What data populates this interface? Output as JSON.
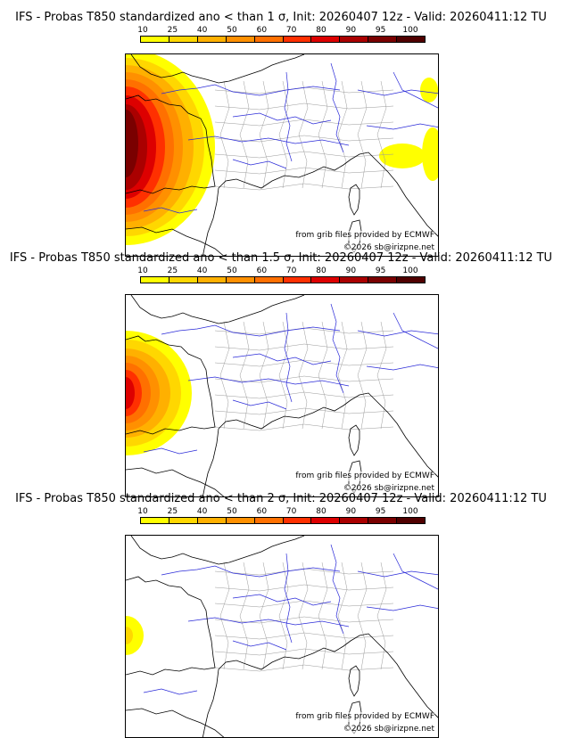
{
  "panels": [
    {
      "title": "IFS - Probas T850  standardized ano < than 1 σ, Init: 20260407 12z - Valid: 20260411:12 TU",
      "sigma": 1,
      "source_note": "from grib files provided by ECMWF",
      "copyright": "©2026 sb@irizpne.net"
    },
    {
      "title": "IFS - Probas T850  standardized ano < than 1.5 σ, Init: 20260407 12z - Valid: 20260411:12 TU",
      "sigma": 1.5,
      "source_note": "from grib files provided by ECMWF",
      "copyright": "©2026 sb@irizpne.net"
    },
    {
      "title": "IFS - Probas T850  standardized ano < than 2 σ, Init: 20260407 12z - Valid: 20260411:12 TU",
      "sigma": 2,
      "source_note": "from grib files provided by ECMWF",
      "copyright": "©2026 sb@irizpne.net"
    }
  ],
  "colorbar": {
    "labels": [
      "10",
      "25",
      "40",
      "50",
      "60",
      "70",
      "80",
      "90",
      "95",
      "100"
    ],
    "colors": [
      "#ffff00",
      "#ffd700",
      "#ffb000",
      "#ff9000",
      "#ff7000",
      "#ff3000",
      "#dd0000",
      "#aa0000",
      "#7a0000",
      "#500000"
    ]
  },
  "map_colors": {
    "coast": "#000000",
    "rivers": "#2a2ad8",
    "admin": "#9a9a9a"
  }
}
